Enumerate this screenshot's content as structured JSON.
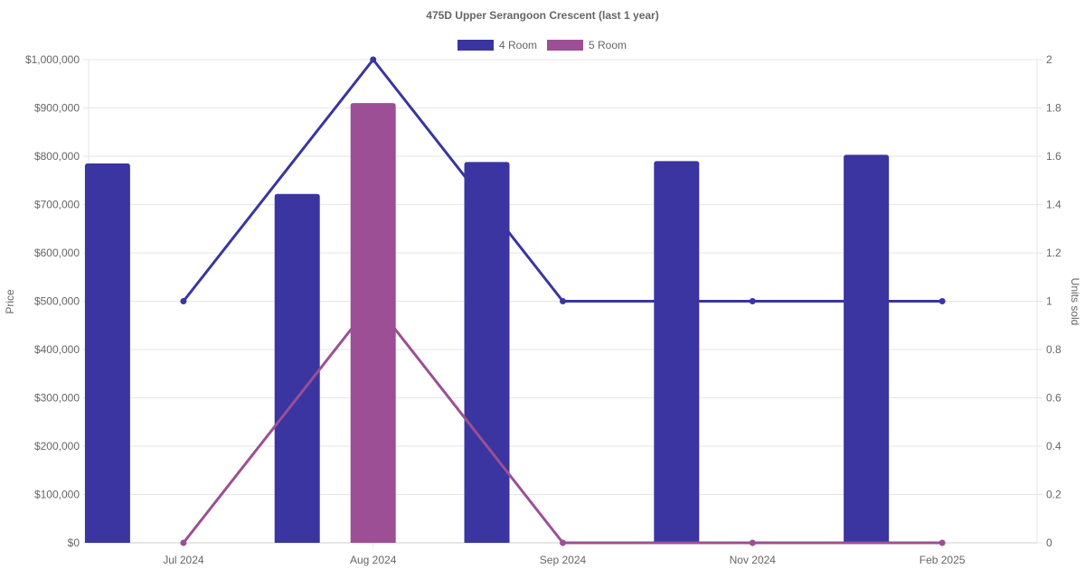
{
  "chart_data": {
    "type": "bar",
    "title": "475D Upper Serangoon Crescent (last 1 year)",
    "categories": [
      "Jul 2024",
      "Aug 2024",
      "Sep 2024",
      "Nov 2024",
      "Feb 2025"
    ],
    "y_left": {
      "label": "Price",
      "range": [
        0,
        1000000
      ],
      "ticks": [
        "$0",
        "$100,000",
        "$200,000",
        "$300,000",
        "$400,000",
        "$500,000",
        "$600,000",
        "$700,000",
        "$800,000",
        "$900,000",
        "$1,000,000"
      ]
    },
    "y_right": {
      "label": "Units sold",
      "range": [
        0,
        2
      ],
      "ticks": [
        "0",
        "0.2",
        "0.4",
        "0.6",
        "0.8",
        "1",
        "1.2",
        "1.4",
        "1.6",
        "1.8",
        "2"
      ]
    },
    "legend": {
      "position": "top",
      "entries": [
        "4 Room",
        "5 Room"
      ]
    },
    "grid": true,
    "series": [
      {
        "name": "4 Room",
        "kind": "bar",
        "axis": "left",
        "color": "#3a35a0",
        "values": [
          785000,
          722000,
          788000,
          790000,
          803000
        ]
      },
      {
        "name": "5 Room",
        "kind": "bar",
        "axis": "left",
        "color": "#9c4f94",
        "values": [
          null,
          910000,
          null,
          null,
          null
        ]
      },
      {
        "name": "4 Room",
        "kind": "line",
        "axis": "right",
        "color": "#3a35a0",
        "values": [
          1,
          2,
          1,
          1,
          1
        ]
      },
      {
        "name": "5 Room",
        "kind": "line",
        "axis": "right",
        "color": "#9c4f94",
        "values": [
          0,
          1,
          0,
          0,
          0
        ]
      }
    ]
  }
}
